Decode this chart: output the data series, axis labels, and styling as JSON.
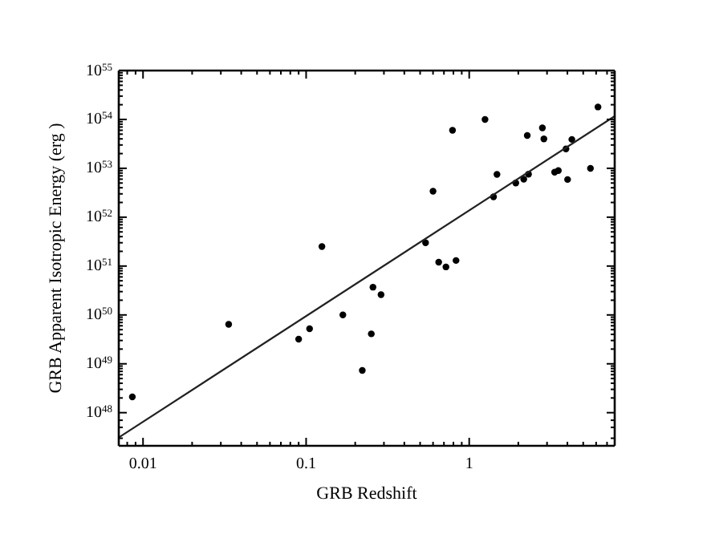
{
  "chart_data": {
    "type": "scatter",
    "xlabel": "GRB Redshift",
    "ylabel": "GRB Apparent Isotropic Energy (erg   )",
    "log": "xy",
    "marker": "circle",
    "grid": false,
    "xlim": [
      0.0071,
      7.8
    ],
    "ylim": [
      2.1e+47,
      1e+55
    ],
    "xticks": [
      {
        "value": 0.008,
        "label": null
      },
      {
        "value": 0.009,
        "label": null
      },
      0.01,
      {
        "value": 0.02,
        "label": null
      },
      {
        "value": 0.03,
        "label": null
      },
      {
        "value": 0.04,
        "label": null
      },
      {
        "value": 0.05,
        "label": null
      },
      {
        "value": 0.06,
        "label": null
      },
      {
        "value": 0.07,
        "label": null
      },
      {
        "value": 0.08,
        "label": null
      },
      {
        "value": 0.09,
        "label": null
      },
      0.1,
      {
        "value": 0.2,
        "label": null
      },
      {
        "value": 0.3,
        "label": null
      },
      {
        "value": 0.4,
        "label": null
      },
      {
        "value": 0.5,
        "label": null
      },
      {
        "value": 0.6,
        "label": null
      },
      {
        "value": 0.7,
        "label": null
      },
      {
        "value": 0.8,
        "label": null
      },
      {
        "value": 0.9,
        "label": null
      },
      1,
      {
        "value": 2,
        "label": null
      },
      {
        "value": 3,
        "label": null
      },
      {
        "value": 4,
        "label": null
      },
      {
        "value": 5,
        "label": null
      },
      {
        "value": 6,
        "label": null
      },
      {
        "value": 7,
        "label": null
      }
    ],
    "yticks": [
      {
        "value": 3e+47,
        "label": null
      },
      {
        "value": 5e+47,
        "label": null
      },
      {
        "value": 7e+47,
        "label": null
      },
      {
        "value": 1e+48,
        "label": "10$^{48}$"
      },
      {
        "value": 2e+48,
        "label": null
      },
      {
        "value": 3e+48,
        "label": null
      },
      {
        "value": 4e+48,
        "label": null
      },
      {
        "value": 5e+48,
        "label": null
      },
      {
        "value": 6e+48,
        "label": null
      },
      {
        "value": 7e+48,
        "label": null
      },
      {
        "value": 8e+48,
        "label": null
      },
      {
        "value": 9e+48,
        "label": null
      },
      {
        "value": 1e+49,
        "label": "10$^{49}$"
      },
      {
        "value": 2e+49,
        "label": null
      },
      {
        "value": 3e+49,
        "label": null
      },
      {
        "value": 4e+49,
        "label": null
      },
      {
        "value": 5e+49,
        "label": null
      },
      {
        "value": 6e+49,
        "label": null
      },
      {
        "value": 7e+49,
        "label": null
      },
      {
        "value": 8e+49,
        "label": null
      },
      {
        "value": 9e+49,
        "label": null
      },
      {
        "value": 1e+50,
        "label": "10$^{50}$"
      },
      {
        "value": 2e+50,
        "label": null
      },
      {
        "value": 3e+50,
        "label": null
      },
      {
        "value": 4e+50,
        "label": null
      },
      {
        "value": 5e+50,
        "label": null
      },
      {
        "value": 6e+50,
        "label": null
      },
      {
        "value": 7e+50,
        "label": null
      },
      {
        "value": 8e+50,
        "label": null
      },
      {
        "value": 9e+50,
        "label": null
      },
      {
        "value": 1e+51,
        "label": "10$^{51}$"
      },
      {
        "value": 2e+51,
        "label": null
      },
      {
        "value": 3e+51,
        "label": null
      },
      {
        "value": 4e+51,
        "label": null
      },
      {
        "value": 5e+51,
        "label": null
      },
      {
        "value": 6e+51,
        "label": null
      },
      {
        "value": 7e+51,
        "label": null
      },
      {
        "value": 8e+51,
        "label": null
      },
      {
        "value": 9e+51,
        "label": null
      },
      {
        "value": 1e+52,
        "label": "10$^{52}$"
      },
      {
        "value": 2e+52,
        "label": null
      },
      {
        "value": 3e+52,
        "label": null
      },
      {
        "value": 4e+52,
        "label": null
      },
      {
        "value": 5e+52,
        "label": null
      },
      {
        "value": 6e+52,
        "label": null
      },
      {
        "value": 7e+52,
        "label": null
      },
      {
        "value": 8e+52,
        "label": null
      },
      {
        "value": 9e+52,
        "label": null
      },
      {
        "value": 1e+53,
        "label": "10$^{53}$"
      },
      {
        "value": 2e+53,
        "label": null
      },
      {
        "value": 3e+53,
        "label": null
      },
      {
        "value": 4e+53,
        "label": null
      },
      {
        "value": 5e+53,
        "label": null
      },
      {
        "value": 6e+53,
        "label": null
      },
      {
        "value": 7e+53,
        "label": null
      },
      {
        "value": 8e+53,
        "label": null
      },
      {
        "value": 9e+53,
        "label": null
      },
      {
        "value": 1e+54,
        "label": "10$^{54}$"
      },
      {
        "value": 2e+54,
        "label": null
      },
      {
        "value": 3e+54,
        "label": null
      },
      {
        "value": 4e+54,
        "label": null
      },
      {
        "value": 5e+54,
        "label": null
      },
      {
        "value": 6e+54,
        "label": null
      },
      {
        "value": 7e+54,
        "label": null
      },
      {
        "value": 8e+54,
        "label": null
      },
      {
        "value": 9e+54,
        "label": null
      },
      {
        "value": 1e+55,
        "label": "10$^{55}$"
      }
    ],
    "series": [
      {
        "color": "#000000",
        "x": [
          0.125,
          0.54,
          0.6,
          0.79,
          1.25,
          1.41,
          1.48,
          1.93,
          2.16,
          2.31,
          2.27,
          2.81,
          2.87,
          3.34,
          3.52,
          3.92,
          4.01,
          4.26,
          5.54,
          6.16,
          0.65,
          0.72,
          0.83,
          0.0086,
          0.0335,
          0.09,
          0.105,
          0.168,
          0.257,
          0.288,
          0.251,
          0.221
        ],
        "values": [
          2.5e+51,
          3e+51,
          3.4e+52,
          6e+53,
          1e+54,
          2.6e+52,
          7.5e+52,
          5e+52,
          6e+52,
          7.6e+52,
          4.7e+53,
          6.7e+53,
          4e+53,
          8.3e+52,
          9e+52,
          2.5e+53,
          5.9e+52,
          3.9e+53,
          1e+53,
          1.8e+54,
          1.2e+51,
          9.6e+50,
          1.3e+51,
          2.1e+48,
          6.4e+49,
          3.2e+49,
          5.2e+49,
          1e+50,
          3.7e+50,
          2.6e+50,
          4.1e+49,
          7.3e+48
        ]
      },
      {
        "type": "line",
        "color": "#222222",
        "marker": "none",
        "x": [
          0.0071,
          7.8
        ],
        "values": [
          3.1e+47,
          1.17e+54
        ]
      }
    ]
  }
}
